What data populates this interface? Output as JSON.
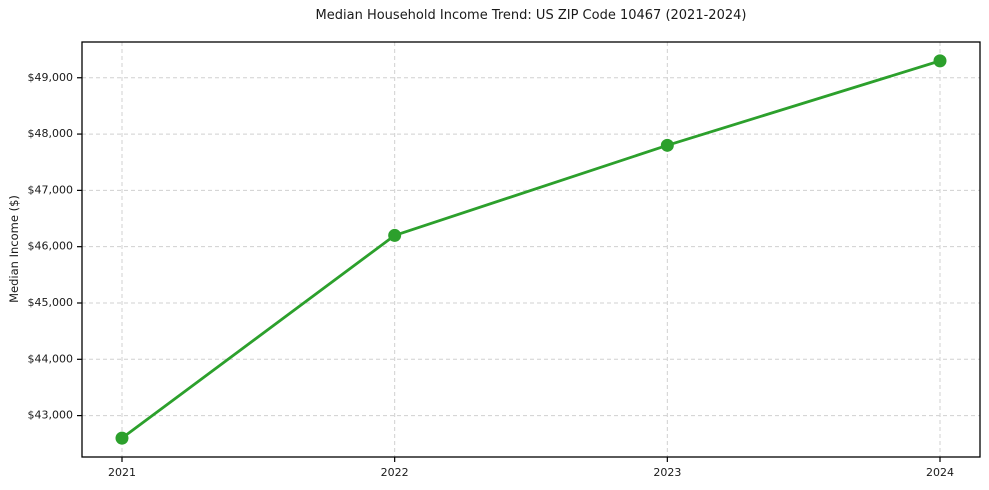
{
  "figure": {
    "title": "Median Household Income Trend: US ZIP Code 10467 (2021-2024)"
  },
  "chart_data": {
    "type": "line",
    "title": "Median Household Income Trend: US ZIP Code 10467 (2021-2024)",
    "xlabel": "",
    "ylabel": "Median Income ($)",
    "x": [
      2021,
      2022,
      2023,
      2024
    ],
    "xtick_labels": [
      "2021",
      "2022",
      "2023",
      "2024"
    ],
    "series": [
      {
        "name": "Median Household Income",
        "values": [
          42600,
          46200,
          47800,
          49300
        ]
      }
    ],
    "yticks": [
      43000,
      44000,
      45000,
      46000,
      47000,
      48000,
      49000
    ],
    "ytick_labels": [
      "$43,000",
      "$44,000",
      "$45,000",
      "$46,000",
      "$47,000",
      "$48,000",
      "$49,000"
    ],
    "ylim": [
      42265,
      49635
    ],
    "grid": true,
    "grid_style": "dashed",
    "legend_position": "none",
    "colors": {
      "line": "#2ca02c",
      "marker": "#2ca02c",
      "grid": "#d0d0d0",
      "spine": "#000000",
      "text": "#1a1a1a",
      "background": "#ffffff"
    }
  }
}
